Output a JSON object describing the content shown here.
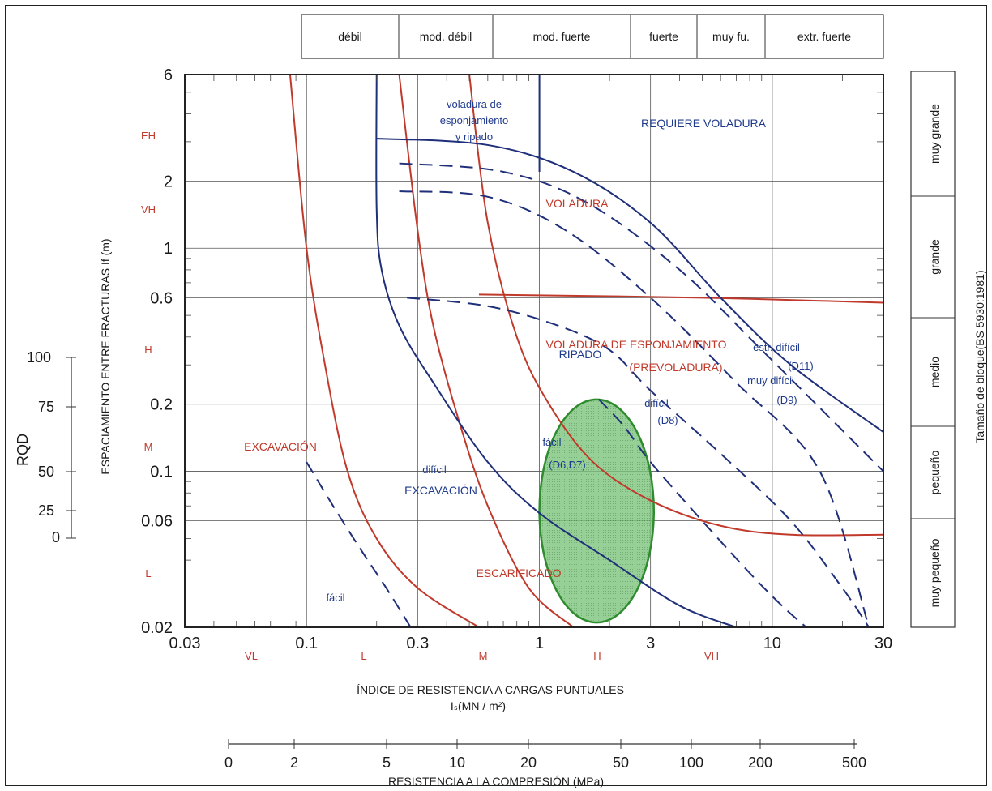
{
  "chart_data": {
    "type": "line",
    "xscale": "log",
    "yscale": "log",
    "x_ticks": [
      "0.03",
      "0.1",
      "0.3",
      "1",
      "3",
      "10",
      "30"
    ],
    "y_ticks": [
      "6",
      "2",
      "1",
      "0.6",
      "0.2",
      "0.1",
      "0.06",
      "0.02"
    ],
    "x_classes": [
      "VL",
      "L",
      "M",
      "H",
      "VH"
    ],
    "y_classes": [
      "EH",
      "VH",
      "H",
      "M",
      "L"
    ],
    "xlabel_line1": "ÍNDICE DE RESISTENCIA A CARGAS PUNTUALES",
    "xlabel_line2": "Iₛ(MN / m²)",
    "ylabel": "ESPACIAMIENTO ENTRE FRACTURAS If (m)",
    "ucs_ticks": [
      "0",
      "2",
      "5",
      "10",
      "20",
      "50",
      "100",
      "200",
      "500"
    ],
    "ucs_label": "RESISTENCIA A LA COMPRESIÓN (MPa)",
    "rqd_ticks": [
      "100",
      "75",
      "50",
      "25",
      "0"
    ],
    "rqd_label": "RQD",
    "strength_classes": [
      "débil",
      "mod. débil",
      "mod. fuerte",
      "fuerte",
      "muy fu.",
      "extr. fuerte"
    ],
    "block_sizes": [
      "muy grande",
      "grande",
      "medio",
      "pequeño",
      "muy pequeño"
    ],
    "block_label": "Tamaño de bloque(BS 5930:1981)",
    "regions": {
      "excavacion": "EXCAVACIÓN",
      "escarificado": "ESCARIFICADO",
      "voladura": "VOLADURA",
      "voladura_esponj": "VOLADURA DE ESPONJAMIENTO",
      "prevoladura": "(PREVOLADURA)",
      "requiere": "REQUIERE VOLADURA",
      "vol_esp_1": "voladura de",
      "vol_esp_2": "esponjamiento",
      "vol_esp_3": "y ripado",
      "ripado": "RIPADO",
      "dificil_exc_1": "difícil",
      "dificil_exc_2": "EXCAVACIÓN",
      "facil_low": "fácil",
      "facil": "fácil",
      "d6d7": "(D6,D7)",
      "dificil": "difícil",
      "d8": "(D8)",
      "muy_dificil": "muy difícil",
      "d9": "(D9)",
      "estr_dificil": "estr. difícil",
      "d11": "(D11)"
    },
    "boundaries": [
      {
        "color": "red",
        "style": "solid",
        "points": [
          [
            0.085,
            6
          ],
          [
            0.1,
            1.0
          ],
          [
            0.12,
            0.3
          ],
          [
            0.15,
            0.1
          ],
          [
            0.2,
            0.05
          ],
          [
            0.3,
            0.03
          ],
          [
            0.55,
            0.02
          ]
        ]
      },
      {
        "color": "red",
        "style": "solid",
        "points": [
          [
            0.25,
            6
          ],
          [
            0.3,
            1.2
          ],
          [
            0.35,
            0.45
          ],
          [
            0.45,
            0.17
          ],
          [
            0.6,
            0.07
          ],
          [
            0.9,
            0.03
          ],
          [
            1.4,
            0.02
          ]
        ]
      },
      {
        "color": "red",
        "style": "solid",
        "points": [
          [
            0.5,
            6
          ],
          [
            0.6,
            1.3
          ],
          [
            0.8,
            0.4
          ],
          [
            1.1,
            0.2
          ],
          [
            1.7,
            0.11
          ],
          [
            3,
            0.074
          ],
          [
            6,
            0.057
          ],
          [
            12,
            0.052
          ],
          [
            30,
            0.052
          ]
        ]
      },
      {
        "color": "red",
        "style": "solid",
        "points": [
          [
            0.55,
            0.62
          ],
          [
            5,
            0.6
          ],
          [
            30,
            0.57
          ]
        ]
      },
      {
        "color": "blue",
        "style": "solid",
        "points": [
          [
            0.2,
            6
          ],
          [
            0.2,
            1.5
          ],
          [
            0.21,
            0.8
          ],
          [
            0.25,
            0.45
          ],
          [
            0.35,
            0.25
          ],
          [
            0.6,
            0.11
          ],
          [
            1,
            0.065
          ],
          [
            2,
            0.04
          ],
          [
            4,
            0.025
          ],
          [
            7,
            0.02
          ]
        ]
      },
      {
        "color": "blue",
        "style": "solid",
        "points": [
          [
            0.2,
            3.1
          ],
          [
            0.6,
            2.9
          ],
          [
            1.4,
            2.2
          ],
          [
            3,
            1.3
          ],
          [
            6,
            0.6
          ],
          [
            12,
            0.3
          ],
          [
            30,
            0.15
          ]
        ]
      },
      {
        "color": "blue",
        "style": "solid",
        "points": [
          [
            1,
            6
          ],
          [
            1,
            2.2
          ]
        ]
      },
      {
        "color": "blue",
        "style": "dashed",
        "points": [
          [
            0.25,
            2.4
          ],
          [
            0.7,
            2.2
          ],
          [
            1.6,
            1.6
          ],
          [
            4,
            0.8
          ],
          [
            9,
            0.35
          ],
          [
            30,
            0.1
          ]
        ]
      },
      {
        "color": "blue",
        "style": "dashed",
        "points": [
          [
            0.25,
            1.8
          ],
          [
            0.6,
            1.7
          ],
          [
            1.3,
            1.2
          ],
          [
            3,
            0.6
          ],
          [
            7,
            0.25
          ],
          [
            16,
            0.1
          ],
          [
            26,
            0.02
          ]
        ]
      },
      {
        "color": "blue",
        "style": "dashed",
        "points": [
          [
            0.27,
            0.6
          ],
          [
            0.6,
            0.55
          ],
          [
            1.2,
            0.45
          ],
          [
            2,
            0.35
          ],
          [
            3,
            0.23
          ],
          [
            6,
            0.12
          ],
          [
            12,
            0.06
          ],
          [
            20,
            0.03
          ],
          [
            26,
            0.02
          ]
        ]
      },
      {
        "color": "blue",
        "style": "dashed",
        "points": [
          [
            0.1,
            0.11
          ],
          [
            0.13,
            0.07
          ],
          [
            0.17,
            0.045
          ],
          [
            0.22,
            0.03
          ],
          [
            0.28,
            0.02
          ]
        ]
      },
      {
        "color": "blue",
        "style": "dashed",
        "points": [
          [
            1.8,
            0.21
          ],
          [
            2.3,
            0.16
          ],
          [
            3,
            0.11
          ],
          [
            5,
            0.06
          ],
          [
            8,
            0.035
          ],
          [
            11,
            0.025
          ],
          [
            14,
            0.02
          ]
        ]
      }
    ],
    "highlight": {
      "x_center": 1.8,
      "y_center": 0.075,
      "x_range": [
        1.0,
        3.1
      ],
      "y_range": [
        0.021,
        0.21
      ],
      "color": "#6db86d"
    }
  }
}
